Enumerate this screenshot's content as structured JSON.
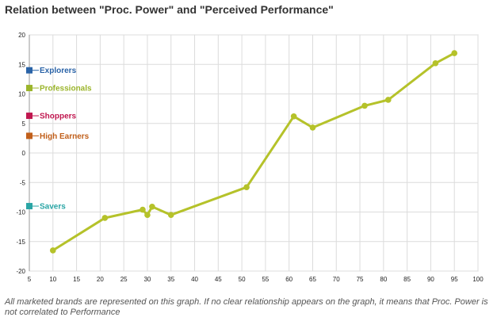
{
  "title": "Relation between \"Proc. Power\" and \"Perceived Performance\"",
  "caption": "All marketed brands are represented on this graph. If no clear relationship appears on the graph, it means that Proc. Power is not correlated to Performance",
  "chart_data": {
    "type": "line",
    "xlim": [
      5,
      100
    ],
    "ylim": [
      -20,
      20
    ],
    "x_ticks": [
      5,
      10,
      15,
      20,
      25,
      30,
      35,
      40,
      45,
      50,
      55,
      60,
      65,
      70,
      75,
      80,
      85,
      90,
      95,
      100
    ],
    "y_ticks": [
      20,
      15,
      10,
      5,
      0,
      -5,
      -10,
      -15,
      -20
    ],
    "grid": true,
    "series": [
      {
        "color": "#b5c22a",
        "points": [
          {
            "x": 10,
            "y": -16.5
          },
          {
            "x": 21,
            "y": -11.0
          },
          {
            "x": 29,
            "y": -9.6
          },
          {
            "x": 30,
            "y": -10.5
          },
          {
            "x": 31,
            "y": -9.1
          },
          {
            "x": 35,
            "y": -10.5
          },
          {
            "x": 51,
            "y": -5.8
          },
          {
            "x": 61,
            "y": 6.2
          },
          {
            "x": 65,
            "y": 4.3
          },
          {
            "x": 76,
            "y": 8.0
          },
          {
            "x": 81,
            "y": 9.0
          },
          {
            "x": 91,
            "y": 15.2
          },
          {
            "x": 95,
            "y": 16.9
          }
        ]
      }
    ],
    "segments": [
      {
        "label": "Explorers",
        "y": 14,
        "color": "#2a63a7"
      },
      {
        "label": "Professionals",
        "y": 11,
        "color": "#9bb52b"
      },
      {
        "label": "Shoppers",
        "y": 6.3,
        "color": "#c0174f"
      },
      {
        "label": "High Earners",
        "y": 2.9,
        "color": "#c15f1a"
      },
      {
        "label": "Savers",
        "y": -9,
        "color": "#2aa5a5"
      }
    ]
  }
}
